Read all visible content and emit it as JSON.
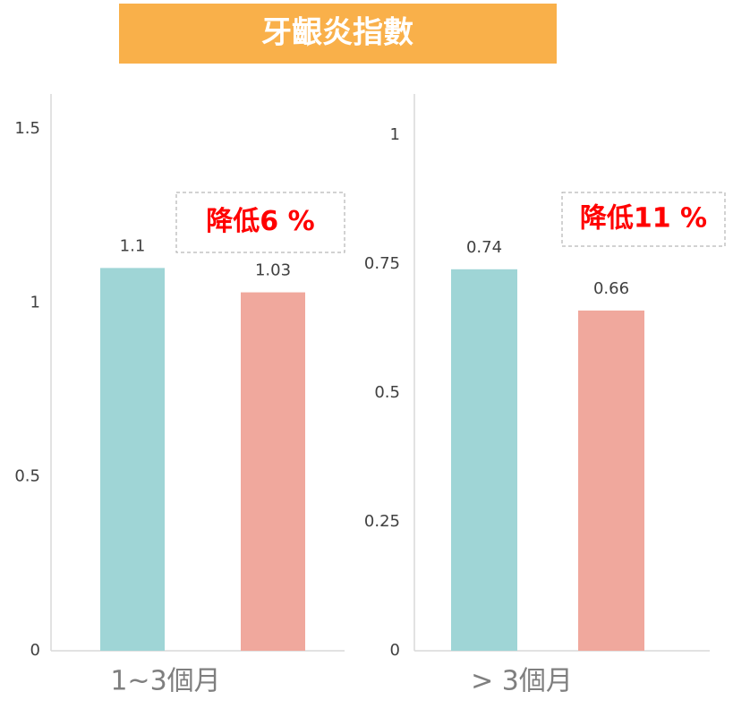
{
  "title": "牙齦炎指數",
  "chart_data": [
    {
      "type": "bar",
      "xlabel": "1~3個月",
      "categories": [
        null,
        null
      ],
      "values": [
        1.1,
        1.03
      ],
      "colors": [
        "#9fd5d6",
        "#f0a89d"
      ],
      "ylim": [
        0,
        1.6
      ],
      "yticks": [
        0,
        0.5,
        1,
        1.5
      ],
      "annotation": "降低6 %",
      "grid": false
    },
    {
      "type": "bar",
      "xlabel": "> 3個月",
      "categories": [
        null,
        null
      ],
      "values": [
        0.74,
        0.66
      ],
      "colors": [
        "#9fd5d6",
        "#f0a89d"
      ],
      "ylim": [
        0,
        1.08
      ],
      "yticks": [
        0,
        0.25,
        0.5,
        0.75,
        1
      ],
      "annotation": "降低11 %",
      "grid": false
    }
  ]
}
